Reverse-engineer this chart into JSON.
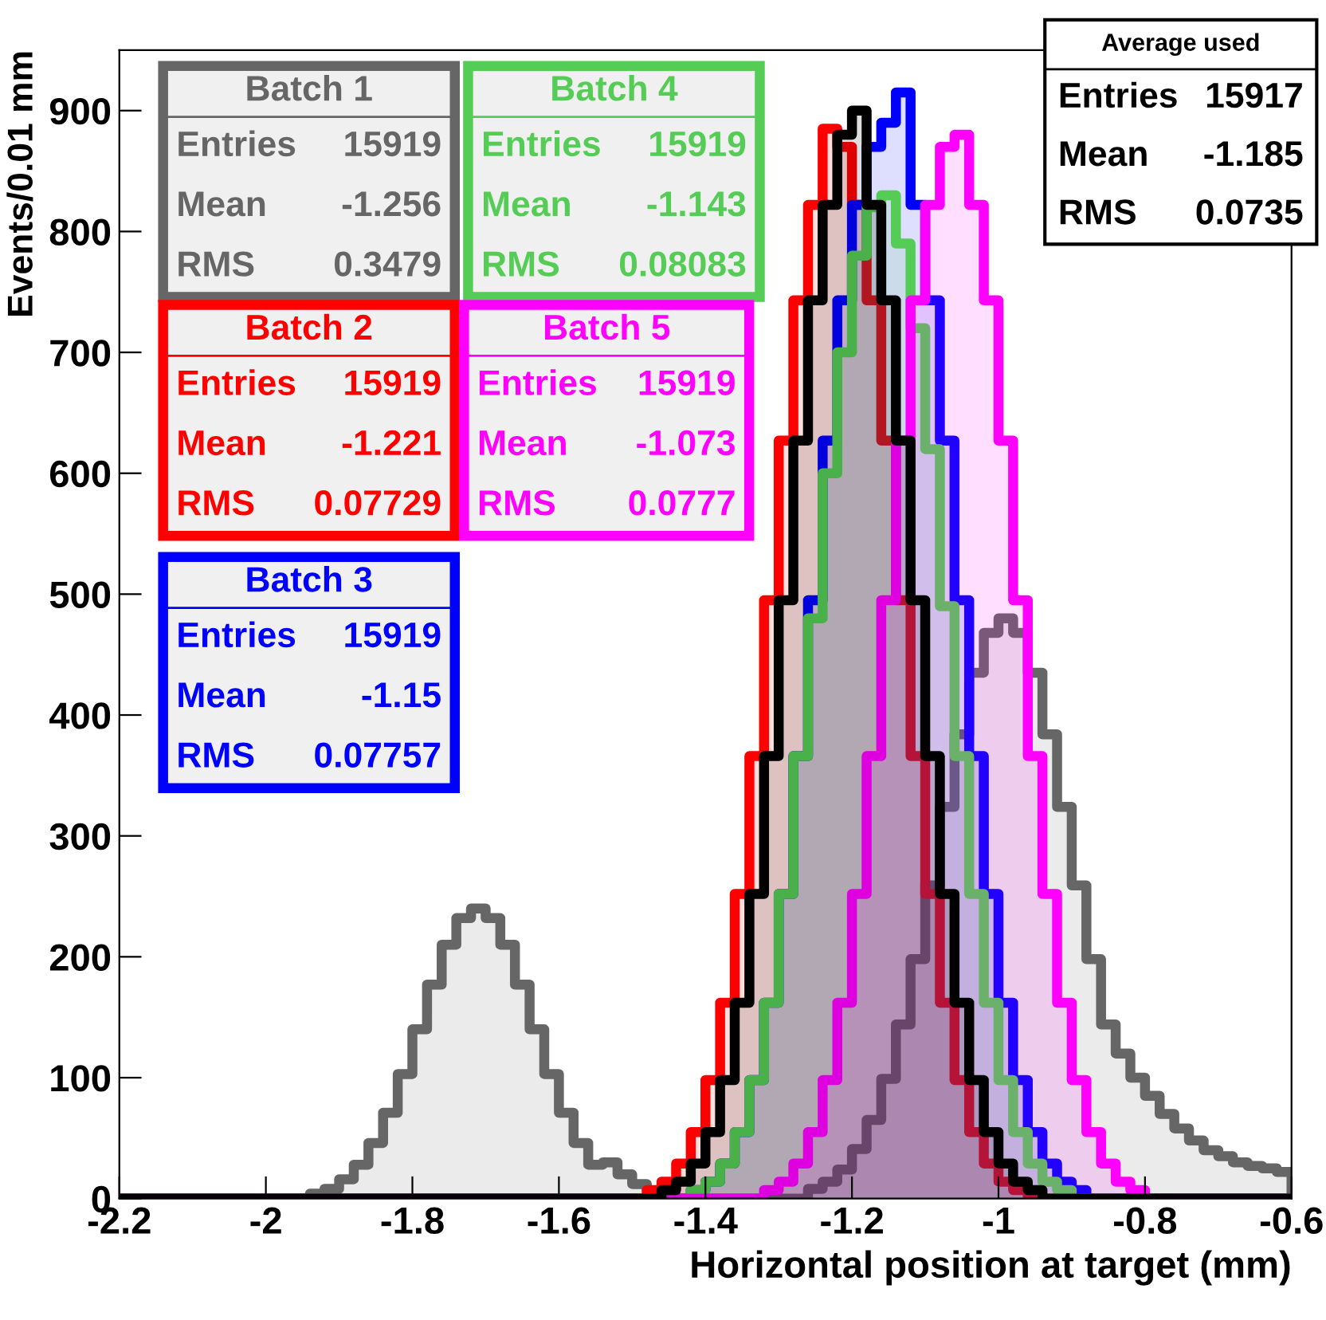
{
  "chart_data": {
    "type": "histogram",
    "xlabel": "Horizontal position at target (mm)",
    "ylabel": "Events/0.01 mm",
    "bins": [
      -2.2,
      -2.18,
      -2.16,
      -2.14,
      -2.12,
      -2.1,
      -2.08,
      -2.06,
      -2.04,
      -2.02,
      -2.0,
      -1.98,
      -1.96,
      -1.94,
      -1.92,
      -1.9,
      -1.88,
      -1.86,
      -1.84,
      -1.82,
      -1.8,
      -1.78,
      -1.76,
      -1.74,
      -1.72,
      -1.7,
      -1.68,
      -1.66,
      -1.64,
      -1.62,
      -1.6,
      -1.58,
      -1.56,
      -1.54,
      -1.52,
      -1.5,
      -1.48,
      -1.46,
      -1.44,
      -1.42,
      -1.4,
      -1.38,
      -1.36,
      -1.34,
      -1.32,
      -1.3,
      -1.28,
      -1.26,
      -1.24,
      -1.22,
      -1.2,
      -1.18,
      -1.16,
      -1.14,
      -1.12,
      -1.1,
      -1.08,
      -1.06,
      -1.04,
      -1.02,
      -1.0,
      -0.98,
      -0.96,
      -0.94,
      -0.92,
      -0.9,
      -0.88,
      -0.86,
      -0.84,
      -0.82,
      -0.8,
      -0.78,
      -0.76,
      -0.74,
      -0.72,
      -0.7,
      -0.68,
      -0.66,
      -0.64,
      -0.62,
      -0.6
    ],
    "series": [
      {
        "name": "Batch 1",
        "color": "#666666",
        "values": [
          0,
          0,
          0,
          0,
          0,
          0,
          0,
          0,
          0,
          0,
          0,
          0,
          0,
          4,
          8,
          16,
          28,
          46,
          71,
          103,
          140,
          177,
          210,
          232,
          240,
          232,
          210,
          177,
          140,
          103,
          71,
          46,
          28,
          30,
          20,
          12,
          6,
          3,
          0,
          0,
          0,
          0,
          0,
          0,
          0,
          0,
          0,
          8,
          14,
          24,
          41,
          65,
          99,
          144,
          198,
          259,
          324,
          384,
          435,
          468,
          480,
          468,
          435,
          384,
          324,
          259,
          198,
          144,
          120,
          100,
          85,
          70,
          58,
          48,
          40,
          35,
          30,
          27,
          25,
          22
        ]
      },
      {
        "name": "Batch 2",
        "color": "#ff0000",
        "values": [
          0,
          0,
          0,
          0,
          0,
          0,
          0,
          0,
          0,
          0,
          0,
          0,
          0,
          0,
          0,
          0,
          0,
          0,
          0,
          0,
          0,
          0,
          0,
          0,
          0,
          0,
          0,
          0,
          0,
          0,
          0,
          0,
          0,
          0,
          0,
          0,
          7,
          14,
          29,
          55,
          98,
          162,
          252,
          366,
          495,
          627,
          743,
          822,
          885,
          870,
          822,
          743,
          627,
          495,
          366,
          252,
          162,
          98,
          55,
          29,
          14,
          7,
          0,
          0,
          0,
          0,
          0,
          0,
          0,
          0,
          0,
          0,
          0,
          0,
          0,
          0,
          0,
          0,
          0,
          0
        ]
      },
      {
        "name": "Batch 3",
        "color": "#0000ff",
        "values": [
          0,
          0,
          0,
          0,
          0,
          0,
          0,
          0,
          0,
          0,
          0,
          0,
          0,
          0,
          0,
          0,
          0,
          0,
          0,
          0,
          0,
          0,
          0,
          0,
          0,
          0,
          0,
          0,
          0,
          0,
          0,
          0,
          0,
          0,
          0,
          0,
          0,
          0,
          0,
          7,
          14,
          29,
          55,
          98,
          162,
          252,
          366,
          495,
          627,
          743,
          822,
          870,
          890,
          915,
          822,
          743,
          627,
          495,
          366,
          252,
          162,
          98,
          55,
          29,
          14,
          7,
          0,
          0,
          0,
          0,
          0,
          0,
          0,
          0,
          0,
          0,
          0,
          0,
          0,
          0
        ]
      },
      {
        "name": "Batch 4",
        "color": "#55cc55",
        "values": [
          0,
          0,
          0,
          0,
          0,
          0,
          0,
          0,
          0,
          0,
          0,
          0,
          0,
          0,
          0,
          0,
          0,
          0,
          0,
          0,
          0,
          0,
          0,
          0,
          0,
          0,
          0,
          0,
          0,
          0,
          0,
          0,
          0,
          0,
          0,
          0,
          0,
          0,
          0,
          7,
          14,
          29,
          55,
          98,
          162,
          252,
          366,
          480,
          600,
          700,
          780,
          820,
          830,
          790,
          720,
          620,
          490,
          366,
          252,
          162,
          98,
          55,
          29,
          14,
          7,
          0,
          0,
          0,
          0,
          0,
          0,
          0,
          0,
          0,
          0,
          0,
          0,
          0,
          0,
          0
        ]
      },
      {
        "name": "Batch 5",
        "color": "#ff00ff",
        "values": [
          0,
          0,
          0,
          0,
          0,
          0,
          0,
          0,
          0,
          0,
          0,
          0,
          0,
          0,
          0,
          0,
          0,
          0,
          0,
          0,
          0,
          0,
          0,
          0,
          0,
          0,
          0,
          0,
          0,
          0,
          0,
          0,
          0,
          0,
          0,
          0,
          0,
          0,
          0,
          0,
          0,
          0,
          0,
          0,
          7,
          14,
          29,
          55,
          98,
          162,
          252,
          366,
          495,
          627,
          743,
          822,
          870,
          880,
          822,
          743,
          627,
          495,
          366,
          252,
          162,
          98,
          55,
          29,
          14,
          7,
          0,
          0,
          0,
          0,
          0,
          0,
          0,
          0,
          0,
          0
        ]
      },
      {
        "name": "Average used",
        "color": "#000000",
        "values": [
          0,
          0,
          0,
          0,
          0,
          0,
          0,
          0,
          0,
          0,
          0,
          0,
          0,
          0,
          0,
          0,
          0,
          0,
          0,
          0,
          0,
          0,
          0,
          0,
          0,
          0,
          0,
          0,
          0,
          0,
          0,
          0,
          0,
          0,
          0,
          0,
          0,
          7,
          14,
          29,
          55,
          98,
          162,
          252,
          366,
          495,
          627,
          743,
          822,
          880,
          900,
          822,
          743,
          627,
          495,
          366,
          252,
          162,
          98,
          55,
          29,
          14,
          7,
          0,
          0,
          0,
          0,
          0,
          0,
          0,
          0,
          0,
          0,
          0,
          0,
          0,
          0,
          0,
          0,
          0
        ]
      }
    ],
    "annotations": [
      "Entries 15919",
      "Mean -1.256",
      "RMS 0.3479",
      "Entries 15919",
      "Mean -1.221",
      "RMS 0.07729",
      "Entries 15919",
      "Mean -1.15",
      "RMS 0.07757",
      "Entries 15919",
      "Mean -1.143",
      "RMS 0.08083",
      "Entries 15919",
      "Mean -1.073",
      "RMS 0.0777",
      "Entries 15917",
      "Mean -1.185",
      "RMS 0.0735"
    ],
    "xlim": [
      -2.2,
      -0.6
    ],
    "ylim": [
      0,
      950
    ],
    "xticks": [
      -2.2,
      -2,
      -1.8,
      -1.6,
      -1.4,
      -1.2,
      -1,
      -0.8,
      -0.6
    ],
    "yticks": [
      0,
      100,
      200,
      300,
      400,
      500,
      600,
      700,
      800,
      900
    ],
    "grid": false
  }
}
